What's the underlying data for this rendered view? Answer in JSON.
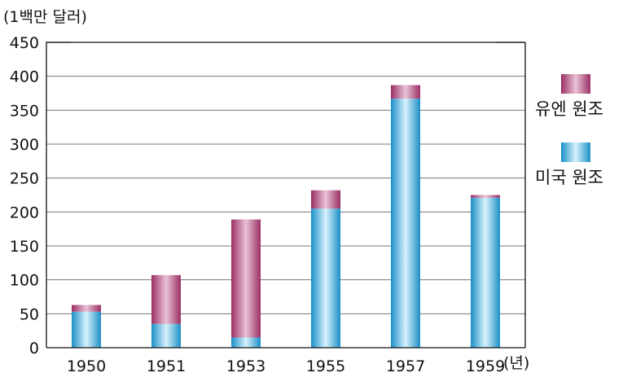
{
  "chart_data": {
    "type": "bar",
    "stacked": true,
    "y_unit_label": "(1백만 달러)",
    "x_unit_label": "(년)",
    "categories": [
      "1950",
      "1951",
      "1953",
      "1955",
      "1957",
      "1959"
    ],
    "series": [
      {
        "name": "미국 원조",
        "values": [
          53,
          35,
          15,
          205,
          367,
          221
        ],
        "color": "#29a8dd"
      },
      {
        "name": "유엔 원조",
        "values": [
          10,
          72,
          174,
          27,
          20,
          4
        ],
        "color": "#a3366f"
      }
    ],
    "ylim": [
      0,
      450
    ],
    "yticks": [
      0,
      50,
      100,
      150,
      200,
      250,
      300,
      350,
      400,
      450
    ],
    "grid": true,
    "legend_position": "right"
  }
}
